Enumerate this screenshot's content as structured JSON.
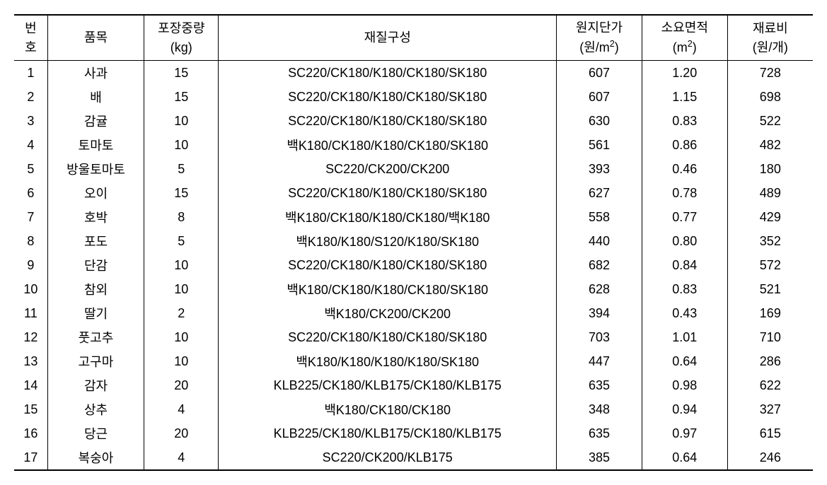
{
  "headers": {
    "no": {
      "line1": "번",
      "line2": "호"
    },
    "item": "품목",
    "weight": {
      "line1": "포장중량",
      "line2": "(kg)"
    },
    "material": "재질구성",
    "unitprice": {
      "line1": "원지단가",
      "line2_pre": "(원/m",
      "line2_sup": "2",
      "line2_post": ")"
    },
    "area": {
      "line1": "소요면적",
      "line2_pre": "(m",
      "line2_sup": "2",
      "line2_post": ")"
    },
    "cost": {
      "line1": "재료비",
      "line2": "(원/개)"
    }
  },
  "rows": [
    {
      "no": "1",
      "item": "사과",
      "weight": "15",
      "material": "SC220/CK180/K180/CK180/SK180",
      "unitprice": "607",
      "area": "1.20",
      "cost": "728"
    },
    {
      "no": "2",
      "item": "배",
      "weight": "15",
      "material": "SC220/CK180/K180/CK180/SK180",
      "unitprice": "607",
      "area": "1.15",
      "cost": "698"
    },
    {
      "no": "3",
      "item": "감귤",
      "weight": "10",
      "material": "SC220/CK180/K180/CK180/SK180",
      "unitprice": "630",
      "area": "0.83",
      "cost": "522"
    },
    {
      "no": "4",
      "item": "토마토",
      "weight": "10",
      "material": "백K180/CK180/K180/CK180/SK180",
      "unitprice": "561",
      "area": "0.86",
      "cost": "482"
    },
    {
      "no": "5",
      "item": "방울토마토",
      "weight": "5",
      "material": "SC220/CK200/CK200",
      "unitprice": "393",
      "area": "0.46",
      "cost": "180"
    },
    {
      "no": "6",
      "item": "오이",
      "weight": "15",
      "material": "SC220/CK180/K180/CK180/SK180",
      "unitprice": "627",
      "area": "0.78",
      "cost": "489"
    },
    {
      "no": "7",
      "item": "호박",
      "weight": "8",
      "material": "백K180/CK180/K180/CK180/백K180",
      "unitprice": "558",
      "area": "0.77",
      "cost": "429"
    },
    {
      "no": "8",
      "item": "포도",
      "weight": "5",
      "material": "백K180/K180/S120/K180/SK180",
      "unitprice": "440",
      "area": "0.80",
      "cost": "352"
    },
    {
      "no": "9",
      "item": "단감",
      "weight": "10",
      "material": "SC220/CK180/K180/CK180/SK180",
      "unitprice": "682",
      "area": "0.84",
      "cost": "572"
    },
    {
      "no": "10",
      "item": "참외",
      "weight": "10",
      "material": "백K180/CK180/K180/CK180/SK180",
      "unitprice": "628",
      "area": "0.83",
      "cost": "521"
    },
    {
      "no": "11",
      "item": "딸기",
      "weight": "2",
      "material": "백K180/CK200/CK200",
      "unitprice": "394",
      "area": "0.43",
      "cost": "169"
    },
    {
      "no": "12",
      "item": "풋고추",
      "weight": "10",
      "material": "SC220/CK180/K180/CK180/SK180",
      "unitprice": "703",
      "area": "1.01",
      "cost": "710"
    },
    {
      "no": "13",
      "item": "고구마",
      "weight": "10",
      "material": "백K180/K180/K180/K180/SK180",
      "unitprice": "447",
      "area": "0.64",
      "cost": "286"
    },
    {
      "no": "14",
      "item": "감자",
      "weight": "20",
      "material": "KLB225/CK180/KLB175/CK180/KLB175",
      "unitprice": "635",
      "area": "0.98",
      "cost": "622"
    },
    {
      "no": "15",
      "item": "상추",
      "weight": "4",
      "material": "백K180/CK180/CK180",
      "unitprice": "348",
      "area": "0.94",
      "cost": "327"
    },
    {
      "no": "16",
      "item": "당근",
      "weight": "20",
      "material": "KLB225/CK180/KLB175/CK180/KLB175",
      "unitprice": "635",
      "area": "0.97",
      "cost": "615"
    },
    {
      "no": "17",
      "item": "복숭아",
      "weight": "4",
      "material": "SC220/CK200/KLB175",
      "unitprice": "385",
      "area": "0.64",
      "cost": "246"
    }
  ]
}
